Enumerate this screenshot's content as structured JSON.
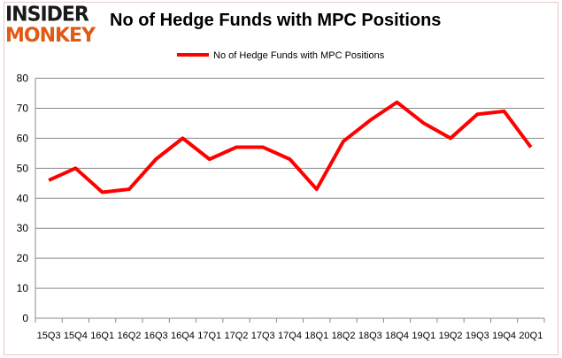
{
  "logo": {
    "line1": "INSIDER",
    "line2": "MONKEY"
  },
  "chart_data": {
    "type": "line",
    "title": "No of Hedge Funds with MPC Positions",
    "categories": [
      "15Q3",
      "15Q4",
      "16Q1",
      "16Q2",
      "16Q3",
      "16Q4",
      "17Q1",
      "17Q2",
      "17Q3",
      "17Q4",
      "18Q1",
      "18Q2",
      "18Q3",
      "18Q4",
      "19Q1",
      "19Q2",
      "19Q3",
      "19Q4",
      "20Q1"
    ],
    "series": [
      {
        "name": "No of Hedge Funds with MPC Positions",
        "color": "#ff0000",
        "values": [
          46,
          50,
          42,
          43,
          53,
          60,
          53,
          57,
          57,
          53,
          43,
          59,
          66,
          72,
          65,
          60,
          68,
          69,
          57
        ]
      }
    ],
    "ylim": [
      0,
      80
    ],
    "yticks": [
      0,
      10,
      20,
      30,
      40,
      50,
      60,
      70,
      80
    ],
    "grid": true,
    "legend": "top-center"
  }
}
